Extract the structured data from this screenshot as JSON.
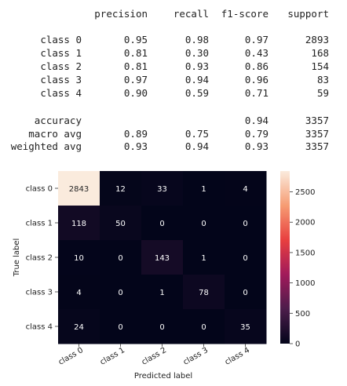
{
  "report": {
    "headers": [
      "precision",
      "recall",
      "f1-score",
      "support"
    ],
    "rows": [
      {
        "label": "class 0",
        "precision": "0.95",
        "recall": "0.98",
        "f1": "0.97",
        "support": "2893"
      },
      {
        "label": "class 1",
        "precision": "0.81",
        "recall": "0.30",
        "f1": "0.43",
        "support": "168"
      },
      {
        "label": "class 2",
        "precision": "0.81",
        "recall": "0.93",
        "f1": "0.86",
        "support": "154"
      },
      {
        "label": "class 3",
        "precision": "0.97",
        "recall": "0.94",
        "f1": "0.96",
        "support": "83"
      },
      {
        "label": "class 4",
        "precision": "0.90",
        "recall": "0.59",
        "f1": "0.71",
        "support": "59"
      }
    ],
    "summary": [
      {
        "label": "accuracy",
        "precision": "",
        "recall": "",
        "f1": "0.94",
        "support": "3357"
      },
      {
        "label": "macro avg",
        "precision": "0.89",
        "recall": "0.75",
        "f1": "0.79",
        "support": "3357"
      },
      {
        "label": "weighted avg",
        "precision": "0.93",
        "recall": "0.94",
        "f1": "0.93",
        "support": "3357"
      }
    ]
  },
  "chart_data": {
    "type": "heatmap",
    "xlabel": "Predicted label",
    "ylabel": "True label",
    "x_categories": [
      "class 0",
      "class 1",
      "class 2",
      "class 3",
      "class 4"
    ],
    "y_categories": [
      "class 0",
      "class 1",
      "class 2",
      "class 3",
      "class 4"
    ],
    "values": [
      [
        2843,
        12,
        33,
        1,
        4
      ],
      [
        118,
        50,
        0,
        0,
        0
      ],
      [
        10,
        0,
        143,
        1,
        0
      ],
      [
        4,
        0,
        1,
        78,
        0
      ],
      [
        24,
        0,
        0,
        0,
        35
      ]
    ],
    "colorbar": {
      "min": 0,
      "max": 2843,
      "ticks": [
        0,
        500,
        1000,
        1500,
        2000,
        2500
      ]
    },
    "colormap": [
      "#03051a",
      "#4c1d4b",
      "#a11a5b",
      "#e83f3f",
      "#f69c73",
      "#faebdd"
    ],
    "annot_light_color": "#ffffff",
    "annot_dark_color": "#262626"
  }
}
